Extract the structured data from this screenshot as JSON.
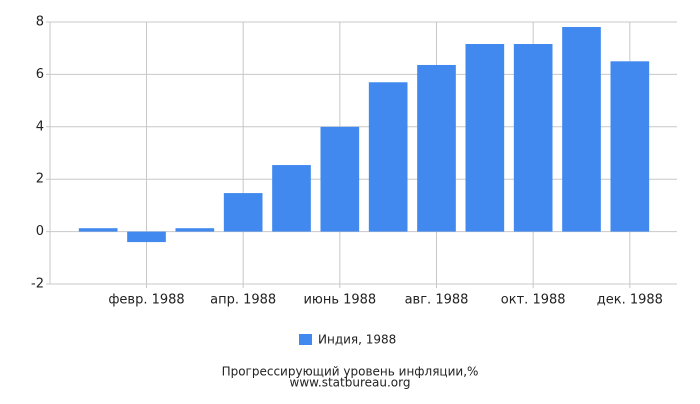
{
  "chart_data": {
    "type": "bar",
    "categories": [
      null,
      "февр. 1988",
      null,
      "апр. 1988",
      null,
      "июнь 1988",
      null,
      "авг. 1988",
      null,
      "окт. 1988",
      null,
      "дек. 1988"
    ],
    "series": [
      {
        "name": "Индия, 1988",
        "color": "#4189ee",
        "values": [
          0.13,
          -0.4,
          0.13,
          1.47,
          2.54,
          4.0,
          5.7,
          6.36,
          7.16,
          7.16,
          7.81,
          6.5
        ]
      }
    ],
    "ylim": [
      -2,
      8
    ],
    "yticks": [
      -2,
      0,
      2,
      4,
      6,
      8
    ],
    "grid": true,
    "caption": [
      "Прогрессирующий уровень инфляции,%",
      "www.statbureau.org"
    ]
  }
}
